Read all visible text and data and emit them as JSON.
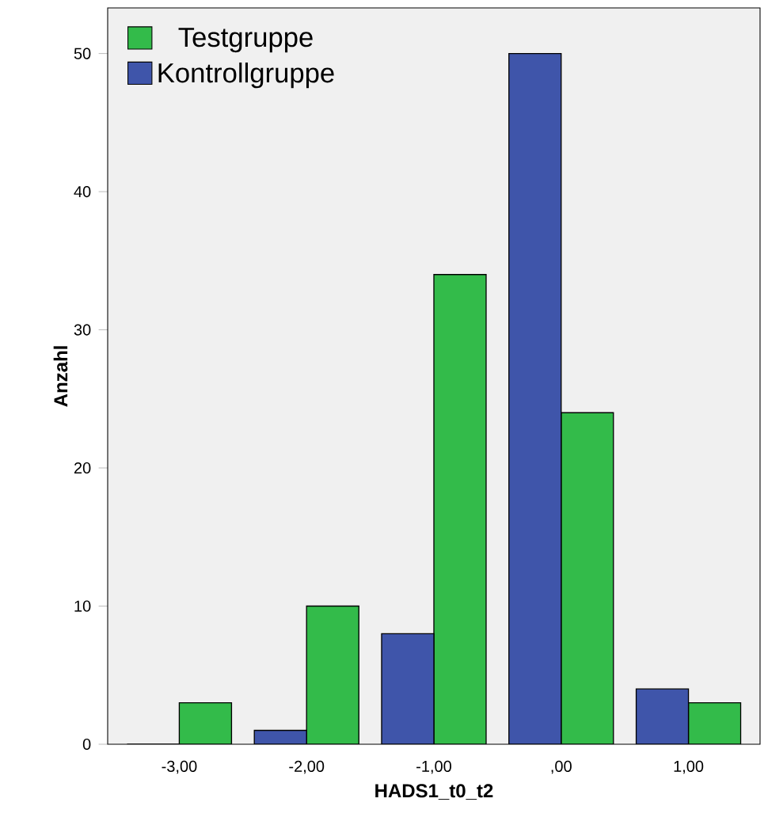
{
  "chart_data": {
    "type": "bar",
    "xlabel": "HADS1_t0_t2",
    "ylabel": "Anzahl",
    "categories": [
      "-3,00",
      "-2,00",
      "-1,00",
      ",00",
      "1,00"
    ],
    "series": [
      {
        "name": "Testgruppe",
        "color": "#33bb4a",
        "values": [
          3,
          10,
          34,
          24,
          3
        ]
      },
      {
        "name": "Kontrollgruppe",
        "color": "#3f55aa",
        "values": [
          0,
          1,
          8,
          50,
          4
        ]
      }
    ],
    "ylim": [
      0,
      53.3
    ],
    "yticks": [
      0,
      10,
      20,
      30,
      40,
      50
    ],
    "grid": false,
    "legend": "top left"
  }
}
